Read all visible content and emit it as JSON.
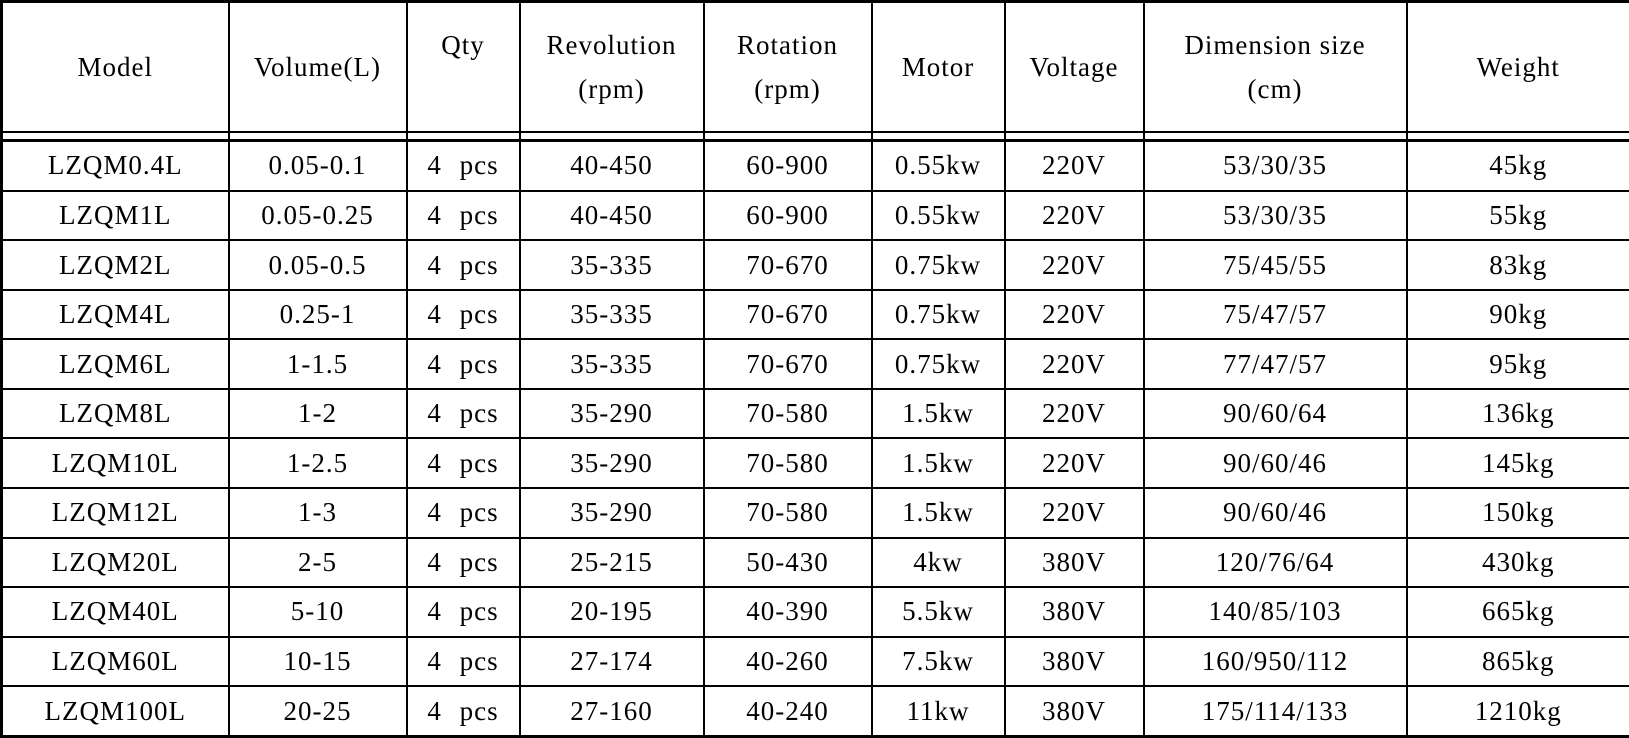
{
  "colors": {
    "border": "#000000",
    "text": "#000000",
    "background": "#ffffff"
  },
  "table": {
    "header": [
      {
        "label": "Model",
        "sub": ""
      },
      {
        "label": "Volume(L)",
        "sub": ""
      },
      {
        "label": "Qty",
        "sub": " "
      },
      {
        "label": "Revolution",
        "sub": "(rpm)"
      },
      {
        "label": "Rotation",
        "sub": "(rpm)"
      },
      {
        "label": "Motor",
        "sub": ""
      },
      {
        "label": "Voltage",
        "sub": ""
      },
      {
        "label": "Dimension size",
        "sub": "(cm)"
      },
      {
        "label": "Weight",
        "sub": ""
      }
    ],
    "rows": [
      [
        "LZQM0.4L",
        "0.05-0.1",
        "4 pcs",
        "40-450",
        "60-900",
        "0.55kw",
        "220V",
        "53/30/35",
        "45kg"
      ],
      [
        "LZQM1L",
        "0.05-0.25",
        "4 pcs",
        "40-450",
        "60-900",
        "0.55kw",
        "220V",
        "53/30/35",
        "55kg"
      ],
      [
        "LZQM2L",
        "0.05-0.5",
        "4 pcs",
        "35-335",
        "70-670",
        "0.75kw",
        "220V",
        "75/45/55",
        "83kg"
      ],
      [
        "LZQM4L",
        "0.25-1",
        "4 pcs",
        "35-335",
        "70-670",
        "0.75kw",
        "220V",
        "75/47/57",
        "90kg"
      ],
      [
        "LZQM6L",
        "1-1.5",
        "4 pcs",
        "35-335",
        "70-670",
        "0.75kw",
        "220V",
        "77/47/57",
        "95kg"
      ],
      [
        "LZQM8L",
        "1-2",
        "4 pcs",
        "35-290",
        "70-580",
        "1.5kw",
        "220V",
        "90/60/64",
        "136kg"
      ],
      [
        "LZQM10L",
        "1-2.5",
        "4 pcs",
        "35-290",
        "70-580",
        "1.5kw",
        "220V",
        "90/60/46",
        "145kg"
      ],
      [
        "LZQM12L",
        "1-3",
        "4 pcs",
        "35-290",
        "70-580",
        "1.5kw",
        "220V",
        "90/60/46",
        "150kg"
      ],
      [
        "LZQM20L",
        "2-5",
        "4 pcs",
        "25-215",
        "50-430",
        "4kw",
        "380V",
        "120/76/64",
        "430kg"
      ],
      [
        "LZQM40L",
        "5-10",
        "4 pcs",
        "20-195",
        "40-390",
        "5.5kw",
        "380V",
        "140/85/103",
        "665kg"
      ],
      [
        "LZQM60L",
        "10-15",
        "4 pcs",
        "27-174",
        "40-260",
        "7.5kw",
        "380V",
        "160/950/112",
        "865kg"
      ],
      [
        "LZQM100L",
        "20-25",
        "4 pcs",
        "27-160",
        "40-240",
        "11kw",
        "380V",
        "175/114/133",
        "1210kg"
      ]
    ]
  }
}
